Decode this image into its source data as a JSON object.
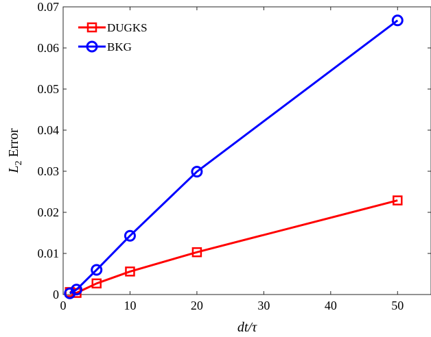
{
  "chart_data": {
    "type": "line",
    "xlabel": "dt/τ",
    "ylabel_main": "L",
    "ylabel_sub": "2",
    "ylabel_rest": " Error",
    "xlim": [
      0,
      55
    ],
    "ylim": [
      0,
      0.07
    ],
    "xticks": [
      0,
      10,
      20,
      30,
      40,
      50
    ],
    "yticks": [
      0,
      0.01,
      0.02,
      0.03,
      0.04,
      0.05,
      0.06,
      0.07
    ],
    "ytick_labels": [
      "0",
      "0.01",
      "0.02",
      "0.03",
      "0.04",
      "0.05",
      "0.06",
      "0.07"
    ],
    "legend_position": "top-left",
    "series": [
      {
        "name": "DUGKS",
        "color": "#ff0000",
        "marker": "square",
        "x": [
          1,
          2,
          5,
          10,
          20,
          50
        ],
        "y": [
          0.0006,
          0.0004,
          0.0027,
          0.0056,
          0.0103,
          0.0229
        ]
      },
      {
        "name": "BKG",
        "color": "#0000ff",
        "marker": "circle",
        "x": [
          1,
          2,
          5,
          10,
          20,
          50
        ],
        "y": [
          0.0003,
          0.0012,
          0.006,
          0.0143,
          0.0299,
          0.0667
        ]
      }
    ]
  }
}
